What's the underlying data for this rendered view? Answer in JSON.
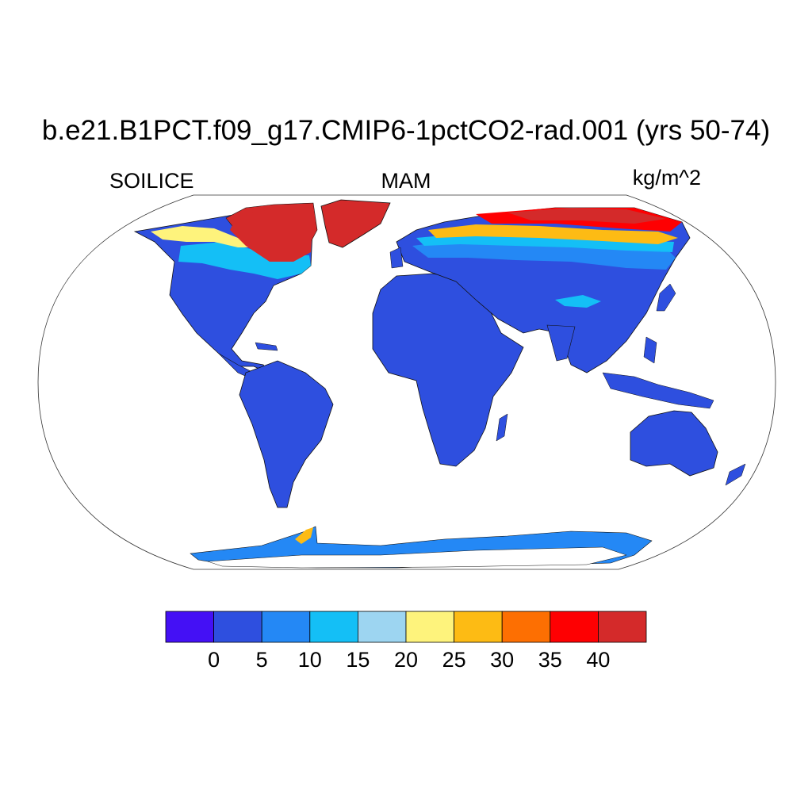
{
  "figure": {
    "title": "b.e21.B1PCT.f09_g17.CMIP6-1pctCO2-rad.001 (yrs 50-74)",
    "left_label": "SOILICE",
    "center_label": "MAM",
    "right_label": "kg/m^2"
  },
  "colorbar": {
    "colors": [
      "#4410f5",
      "#2e4fdf",
      "#2488f5",
      "#14bff6",
      "#9dd5f1",
      "#fef37c",
      "#fdbb14",
      "#fd6f02",
      "#fe0002",
      "#d42a2a"
    ],
    "ticks": [
      "0",
      "5",
      "10",
      "15",
      "20",
      "25",
      "30",
      "35",
      "40"
    ]
  },
  "map": {
    "projection": "Robinson",
    "land_color": "#2e4fdf",
    "ocean_color": "#ffffff"
  }
}
